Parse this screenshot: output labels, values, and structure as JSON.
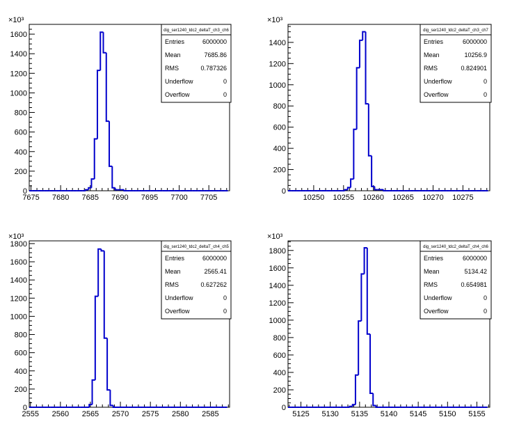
{
  "chart_data": [
    {
      "type": "histogram",
      "multiplier_label": "×10³",
      "stats": {
        "title": "dig_ser1240_tdc2_deltaT_ch3_ch6",
        "rows": [
          {
            "label": "Entries",
            "value": "6000000"
          },
          {
            "label": "Mean",
            "value": "7685.86"
          },
          {
            "label": "RMS",
            "value": "0.787326"
          },
          {
            "label": "Underflow",
            "value": "0"
          },
          {
            "label": "Overflow",
            "value": "0"
          }
        ]
      },
      "xlim": [
        7674.7,
        7708.5
      ],
      "ylim": [
        0,
        1700
      ],
      "xticks": [
        7675,
        7680,
        7685,
        7690,
        7695,
        7700,
        7705
      ],
      "yticks": [
        0,
        200,
        400,
        600,
        800,
        1000,
        1200,
        1400,
        1600
      ],
      "bin_width": 0.5,
      "bins_start": 7674.7,
      "values": [
        0,
        0,
        0,
        0,
        0,
        0,
        0,
        0,
        0,
        0,
        0,
        0,
        0,
        0,
        0,
        0,
        0,
        0,
        0,
        10,
        30,
        120,
        530,
        1230,
        1620,
        1410,
        710,
        250,
        30,
        10,
        10,
        10,
        0,
        0,
        0,
        0,
        0,
        0,
        0,
        0,
        0,
        0,
        0,
        0,
        0,
        0,
        0,
        0,
        0,
        0,
        0,
        0,
        0,
        0,
        0,
        0,
        0,
        0,
        0,
        0,
        0,
        0,
        0,
        0,
        0,
        0,
        0,
        0
      ]
    },
    {
      "type": "histogram",
      "multiplier_label": "×10³",
      "stats": {
        "title": "dig_ser1240_tdc2_deltaT_ch3_ch7",
        "rows": [
          {
            "label": "Entries",
            "value": "6000000"
          },
          {
            "label": "Mean",
            "value": "10256.9"
          },
          {
            "label": "RMS",
            "value": "0.824901"
          },
          {
            "label": "Underflow",
            "value": "0"
          },
          {
            "label": "Overflow",
            "value": "0"
          }
        ]
      },
      "xlim": [
        10245.7,
        10279.5
      ],
      "ylim": [
        0,
        1570
      ],
      "xticks": [
        10250,
        10255,
        10260,
        10265,
        10270,
        10275
      ],
      "yticks": [
        0,
        200,
        400,
        600,
        800,
        1000,
        1200,
        1400
      ],
      "bin_width": 0.5,
      "bins_start": 10245.7,
      "values": [
        0,
        0,
        0,
        0,
        0,
        0,
        0,
        0,
        0,
        0,
        0,
        0,
        0,
        0,
        0,
        0,
        0,
        0,
        0,
        10,
        30,
        110,
        580,
        1160,
        1420,
        1500,
        820,
        330,
        40,
        10,
        10,
        10,
        0,
        0,
        0,
        0,
        0,
        0,
        0,
        0,
        0,
        0,
        0,
        0,
        0,
        0,
        0,
        0,
        0,
        0,
        0,
        0,
        0,
        0,
        0,
        0,
        0,
        0,
        0,
        0,
        0,
        0,
        0,
        0,
        0,
        0,
        0,
        0
      ]
    },
    {
      "type": "histogram",
      "multiplier_label": "×10³",
      "stats": {
        "title": "dig_ser1240_tdc2_deltaT_ch4_ch5",
        "rows": [
          {
            "label": "Entries",
            "value": "6000000"
          },
          {
            "label": "Mean",
            "value": "2565.41"
          },
          {
            "label": "RMS",
            "value": "0.627262"
          },
          {
            "label": "Underflow",
            "value": "0"
          },
          {
            "label": "Overflow",
            "value": "0"
          }
        ]
      },
      "xlim": [
        2554.8,
        2588.2
      ],
      "ylim": [
        0,
        1830
      ],
      "xticks": [
        2555,
        2560,
        2565,
        2570,
        2575,
        2580,
        2585
      ],
      "yticks": [
        0,
        200,
        400,
        600,
        800,
        1000,
        1200,
        1400,
        1600,
        1800
      ],
      "bin_width": 0.5,
      "bins_start": 2554.8,
      "values": [
        0,
        0,
        0,
        0,
        0,
        0,
        0,
        0,
        0,
        0,
        0,
        0,
        0,
        0,
        0,
        0,
        0,
        0,
        0,
        0,
        30,
        300,
        1220,
        1740,
        1720,
        760,
        190,
        20,
        0,
        0,
        0,
        0,
        0,
        0,
        0,
        0,
        0,
        0,
        0,
        0,
        0,
        0,
        0,
        0,
        0,
        0,
        0,
        0,
        0,
        0,
        0,
        0,
        0,
        0,
        0,
        0,
        0,
        0,
        0,
        0,
        0,
        0,
        0,
        0,
        0,
        0,
        0
      ]
    },
    {
      "type": "histogram",
      "multiplier_label": "×10³",
      "stats": {
        "title": "dig_ser1240_tdc2_deltaT_ch4_ch6",
        "rows": [
          {
            "label": "Entries",
            "value": "6000000"
          },
          {
            "label": "Mean",
            "value": "5134.42"
          },
          {
            "label": "RMS",
            "value": "0.654981"
          },
          {
            "label": "Underflow",
            "value": "0"
          },
          {
            "label": "Overflow",
            "value": "0"
          }
        ]
      },
      "xlim": [
        5122.8,
        5157.2
      ],
      "ylim": [
        0,
        1910
      ],
      "xticks": [
        5125,
        5130,
        5135,
        5140,
        5145,
        5150,
        5155
      ],
      "yticks": [
        0,
        200,
        400,
        600,
        800,
        1000,
        1200,
        1400,
        1600,
        1800
      ],
      "bin_width": 0.5,
      "bins_start": 5122.8,
      "values": [
        0,
        0,
        0,
        0,
        0,
        0,
        0,
        0,
        0,
        0,
        0,
        0,
        0,
        0,
        0,
        0,
        0,
        0,
        0,
        0,
        0,
        10,
        30,
        370,
        990,
        1530,
        1830,
        840,
        160,
        20,
        0,
        0,
        0,
        0,
        0,
        0,
        0,
        0,
        0,
        0,
        0,
        0,
        0,
        0,
        0,
        0,
        0,
        0,
        0,
        0,
        0,
        0,
        0,
        0,
        0,
        0,
        0,
        0,
        0,
        0,
        0,
        0,
        0,
        0,
        0,
        0,
        0,
        0,
        0
      ]
    }
  ]
}
